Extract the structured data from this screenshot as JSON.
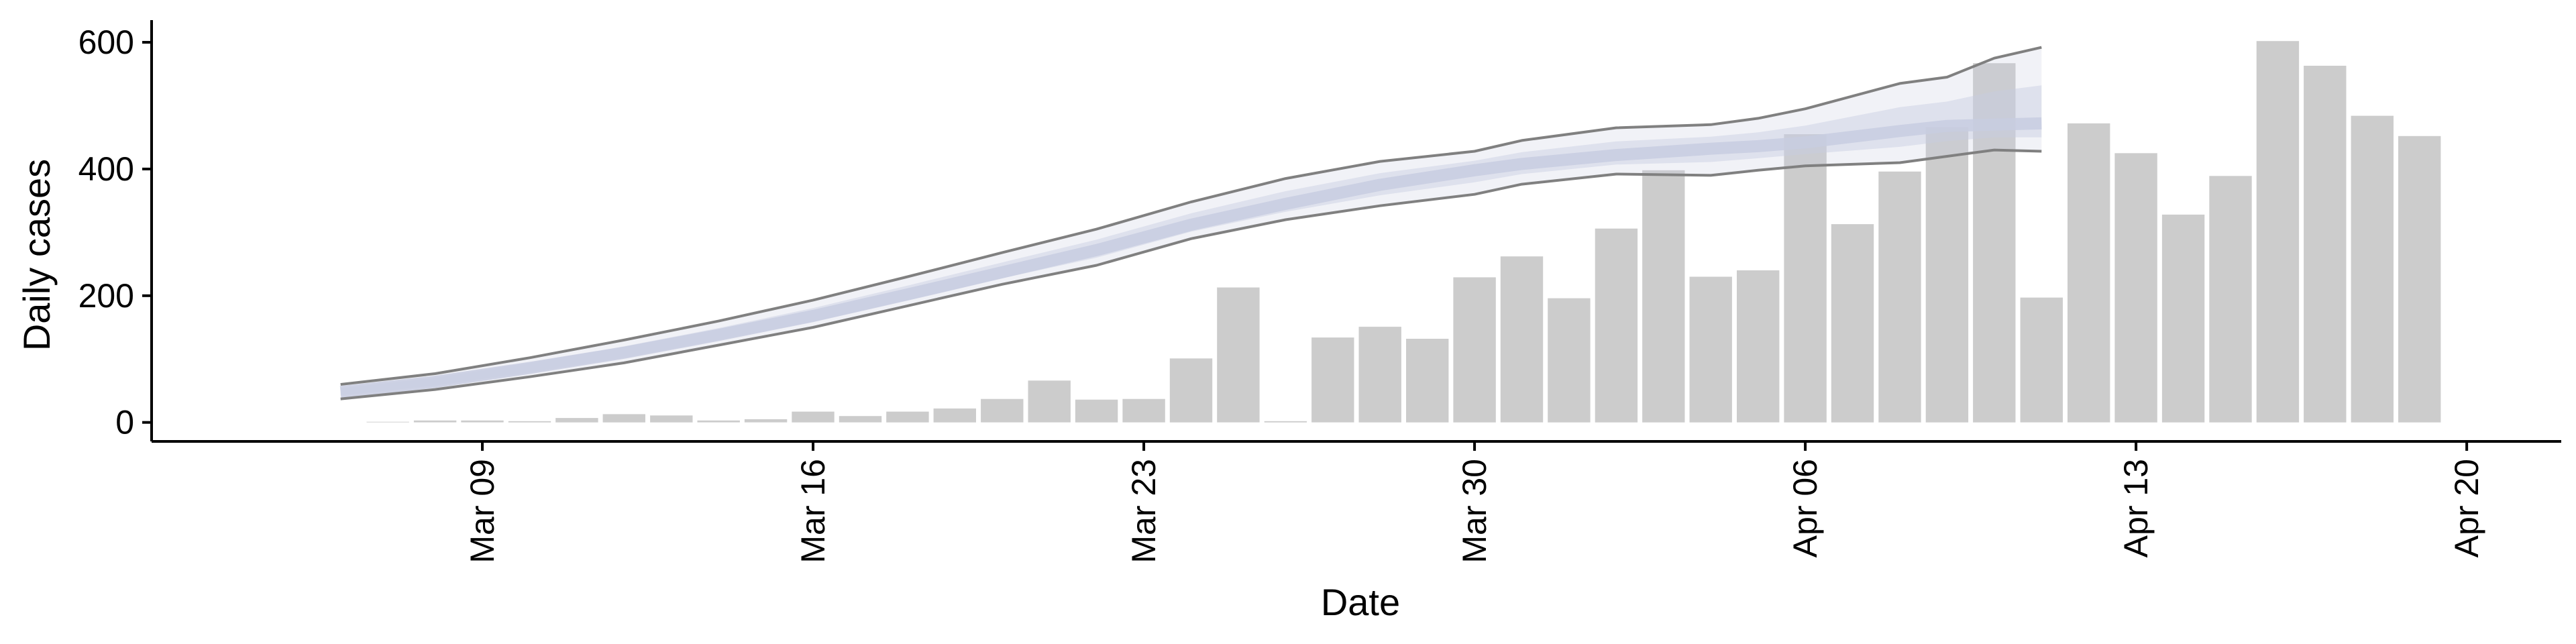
{
  "chart_data": {
    "type": "bar",
    "xlabel": "Date",
    "ylabel": "Daily cases",
    "ylim": [
      -30,
      635
    ],
    "yticks": [
      0,
      200,
      400,
      600
    ],
    "xlim": [
      "2020-03-02",
      "2020-04-22"
    ],
    "xticks": [
      {
        "date": "2020-03-09",
        "label": "Mar 09"
      },
      {
        "date": "2020-03-16",
        "label": "Mar 16"
      },
      {
        "date": "2020-03-23",
        "label": "Mar 23"
      },
      {
        "date": "2020-03-30",
        "label": "Mar 30"
      },
      {
        "date": "2020-04-06",
        "label": "Apr 06"
      },
      {
        "date": "2020-04-13",
        "label": "Apr 13"
      },
      {
        "date": "2020-04-20",
        "label": "Apr 20"
      }
    ],
    "grid": false,
    "bars": {
      "color": "#cccccc",
      "dates": [
        "2020-03-07",
        "2020-03-08",
        "2020-03-09",
        "2020-03-10",
        "2020-03-11",
        "2020-03-12",
        "2020-03-13",
        "2020-03-14",
        "2020-03-15",
        "2020-03-16",
        "2020-03-17",
        "2020-03-18",
        "2020-03-19",
        "2020-03-20",
        "2020-03-21",
        "2020-03-22",
        "2020-03-23",
        "2020-03-24",
        "2020-03-25",
        "2020-03-26",
        "2020-03-27",
        "2020-03-28",
        "2020-03-29",
        "2020-03-30",
        "2020-03-31",
        "2020-04-01",
        "2020-04-02",
        "2020-04-03",
        "2020-04-04",
        "2020-04-05",
        "2020-04-06",
        "2020-04-07",
        "2020-04-08",
        "2020-04-09",
        "2020-04-10",
        "2020-04-11",
        "2020-04-12",
        "2020-04-13",
        "2020-04-14",
        "2020-04-15",
        "2020-04-16",
        "2020-04-17",
        "2020-04-18",
        "2020-04-19",
        "2020-04-20"
      ],
      "values": [
        1,
        3,
        3,
        2,
        7,
        13,
        11,
        3,
        5,
        17,
        10,
        17,
        22,
        37,
        66,
        36,
        37,
        101,
        213,
        2,
        134,
        151,
        132,
        229,
        262,
        196,
        306,
        398,
        230,
        240,
        455,
        313,
        396,
        466,
        567,
        197,
        472,
        425,
        328,
        389,
        602,
        563,
        484,
        452,
        null
      ]
    },
    "estimate": {
      "band_color": "#c8cde0",
      "line_color": "#808080",
      "dates": [
        "2020-03-06",
        "2020-03-08",
        "2020-03-10",
        "2020-03-12",
        "2020-03-14",
        "2020-03-16",
        "2020-03-18",
        "2020-03-20",
        "2020-03-22",
        "2020-03-24",
        "2020-03-26",
        "2020-03-28",
        "2020-03-30",
        "2020-03-31",
        "2020-04-02",
        "2020-04-04",
        "2020-04-05",
        "2020-04-06",
        "2020-04-08",
        "2020-04-09",
        "2020-04-10",
        "2020-04-11"
      ],
      "median": [
        48,
        64,
        86,
        110,
        138,
        168,
        202,
        237,
        272,
        312,
        345,
        375,
        398,
        408,
        422,
        432,
        436,
        442,
        460,
        468,
        470,
        472
      ],
      "lower": [
        37,
        52,
        72,
        94,
        122,
        150,
        184,
        218,
        248,
        290,
        320,
        342,
        360,
        376,
        392,
        390,
        398,
        405,
        410,
        420,
        430,
        428
      ],
      "upper": [
        60,
        77,
        102,
        130,
        160,
        193,
        230,
        268,
        305,
        348,
        385,
        412,
        428,
        445,
        465,
        470,
        480,
        495,
        535,
        545,
        575,
        592
      ]
    }
  }
}
